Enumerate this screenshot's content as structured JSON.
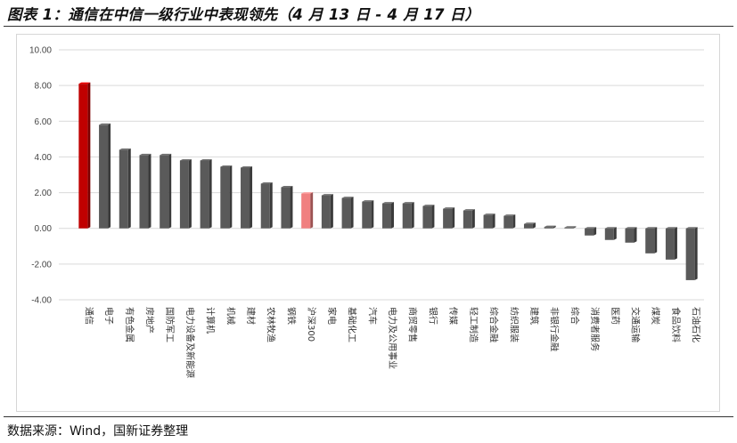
{
  "title": "图表 1：通信在中信一级行业中表现领先（4 月 13 日 - 4 月 17 日）",
  "source": "数据来源：Wind，国新证券整理",
  "colors": {
    "bar_default": "#5a5a5a",
    "bar_highlight": "#c00000",
    "bar_index": "#f08080",
    "gridline": "#d9d9d9"
  },
  "chart_data": {
    "type": "bar",
    "title": "图表 1：通信在中信一级行业中表现领先（4 月 13 日 - 4 月 17 日）",
    "xlabel": "",
    "ylabel": "",
    "ylim": [
      -4,
      10
    ],
    "yticks": [
      "10.00",
      "8.00",
      "6.00",
      "4.00",
      "2.00",
      "0.00",
      "-2.00",
      "-4.00"
    ],
    "ytick_values": [
      10,
      8,
      6,
      4,
      2,
      0,
      -2,
      -4
    ],
    "grid": true,
    "categories": [
      "通信",
      "电子",
      "有色金属",
      "房地产",
      "国防军工",
      "电力设备及新能源",
      "计算机",
      "机械",
      "建材",
      "农林牧渔",
      "钢铁",
      "沪深300",
      "家电",
      "基础化工",
      "汽车",
      "电力及公用事业",
      "商贸零售",
      "银行",
      "传媒",
      "轻工制造",
      "综合金融",
      "纺织服装",
      "建筑",
      "非银行金融",
      "综合",
      "消费者服务",
      "医药",
      "交通运输",
      "煤炭",
      "食品饮料",
      "石油石化"
    ],
    "values": [
      8.1,
      5.8,
      4.4,
      4.1,
      4.1,
      3.8,
      3.8,
      3.45,
      3.4,
      2.5,
      2.3,
      1.95,
      1.85,
      1.7,
      1.5,
      1.4,
      1.4,
      1.25,
      1.1,
      1.0,
      0.75,
      0.7,
      0.25,
      0.08,
      0.05,
      -0.4,
      -0.65,
      -0.8,
      -1.4,
      -1.75,
      -2.9
    ],
    "highlight": [
      "通信"
    ],
    "index": [
      "沪深300"
    ]
  }
}
